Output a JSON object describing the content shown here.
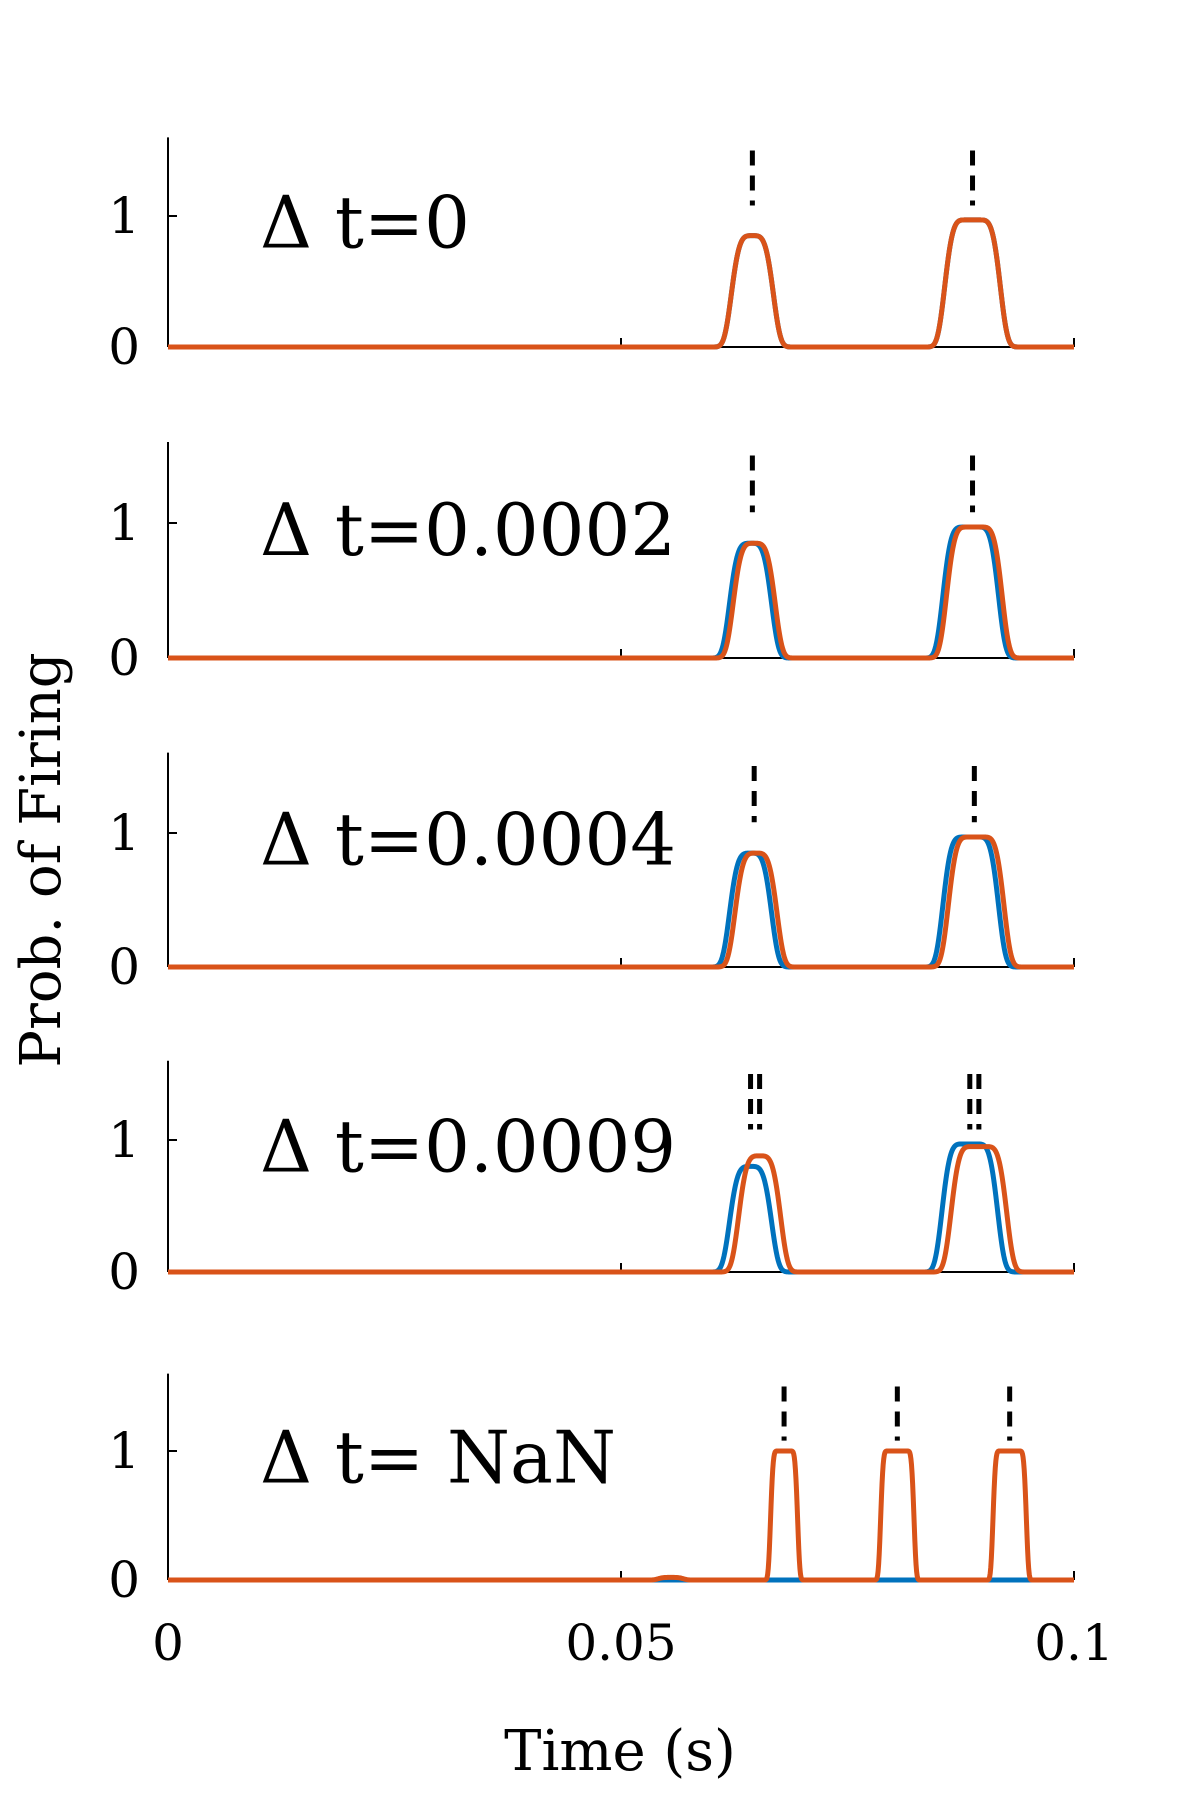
{
  "figure": {
    "ylabel": "Prob. of Firing",
    "xlabel": "Time (s)"
  },
  "colors": {
    "series_blue": "#0072BD",
    "series_orange": "#D95319",
    "spike_marker": "#000000",
    "axis": "#000000"
  },
  "chart_data": [
    {
      "type": "line",
      "label": "Δ t=0",
      "xlim": [
        0,
        0.1
      ],
      "ylim": [
        0,
        1.6
      ],
      "xticks": [
        0,
        0.05,
        0.1
      ],
      "yticks": [
        0,
        1
      ],
      "series": [
        {
          "color": "blue",
          "peaks": [
            {
              "t": 0.0645,
              "h": 0.85,
              "w": 0.0025,
              "flat": 0
            },
            {
              "t": 0.0888,
              "h": 0.97,
              "w": 0.0025,
              "flat": 0.0015
            }
          ]
        },
        {
          "color": "orange",
          "peaks": [
            {
              "t": 0.0645,
              "h": 0.85,
              "w": 0.0025,
              "flat": 0
            },
            {
              "t": 0.0888,
              "h": 0.97,
              "w": 0.0025,
              "flat": 0.0015
            }
          ]
        }
      ],
      "spike_markers": [
        [
          0.0645,
          0.0888
        ]
      ]
    },
    {
      "type": "line",
      "label": "Δ t=0.0002",
      "xlim": [
        0,
        0.1
      ],
      "ylim": [
        0,
        1.6
      ],
      "xticks": [
        0,
        0.05,
        0.1
      ],
      "yticks": [
        0,
        1
      ],
      "series": [
        {
          "color": "blue",
          "peaks": [
            {
              "t": 0.0643,
              "h": 0.85,
              "w": 0.0025,
              "flat": 0
            },
            {
              "t": 0.0886,
              "h": 0.97,
              "w": 0.0025,
              "flat": 0.0015
            }
          ]
        },
        {
          "color": "orange",
          "peaks": [
            {
              "t": 0.0647,
              "h": 0.85,
              "w": 0.0025,
              "flat": 0
            },
            {
              "t": 0.089,
              "h": 0.97,
              "w": 0.0025,
              "flat": 0.0015
            }
          ]
        }
      ],
      "spike_markers": [
        [
          0.0645,
          0.0888
        ]
      ]
    },
    {
      "type": "line",
      "label": "Δ t=0.0004",
      "xlim": [
        0,
        0.1
      ],
      "ylim": [
        0,
        1.6
      ],
      "xticks": [
        0,
        0.05,
        0.1
      ],
      "yticks": [
        0,
        1
      ],
      "series": [
        {
          "color": "blue",
          "peaks": [
            {
              "t": 0.0643,
              "h": 0.85,
              "w": 0.0025,
              "flat": 0
            },
            {
              "t": 0.0886,
              "h": 0.97,
              "w": 0.0025,
              "flat": 0.0015
            }
          ]
        },
        {
          "color": "orange",
          "peaks": [
            {
              "t": 0.0649,
              "h": 0.85,
              "w": 0.0025,
              "flat": 0
            },
            {
              "t": 0.0892,
              "h": 0.97,
              "w": 0.0025,
              "flat": 0.0015
            }
          ]
        }
      ],
      "spike_markers": [
        [
          0.0647,
          0.089
        ]
      ]
    },
    {
      "type": "line",
      "label": "Δ t=0.0009",
      "xlim": [
        0,
        0.1
      ],
      "ylim": [
        0,
        1.6
      ],
      "xticks": [
        0,
        0.05,
        0.1
      ],
      "yticks": [
        0,
        1
      ],
      "series": [
        {
          "color": "blue",
          "peaks": [
            {
              "t": 0.0643,
              "h": 0.8,
              "w": 0.0025,
              "flat": 0
            },
            {
              "t": 0.0885,
              "h": 0.97,
              "w": 0.0025,
              "flat": 0.0015
            }
          ]
        },
        {
          "color": "orange",
          "peaks": [
            {
              "t": 0.0653,
              "h": 0.88,
              "w": 0.0025,
              "flat": 0
            },
            {
              "t": 0.0895,
              "h": 0.95,
              "w": 0.0025,
              "flat": 0.0015
            }
          ]
        }
      ],
      "spike_markers": [
        [
          0.0643,
          0.0885
        ],
        [
          0.0653,
          0.0895
        ]
      ]
    },
    {
      "type": "line",
      "label": "Δ t= NaN",
      "xlim": [
        0,
        0.1
      ],
      "ylim": [
        0,
        1.6
      ],
      "xticks": [
        0,
        0.05,
        0.1
      ],
      "yticks": [
        0,
        1
      ],
      "series": [
        {
          "color": "blue",
          "peaks": []
        },
        {
          "color": "orange",
          "peaks": [
            {
              "t": 0.0555,
              "h": 0.02,
              "w": 0.0015,
              "flat": 0
            },
            {
              "t": 0.068,
              "h": 1.0,
              "w": 0.0008,
              "flat": 0.0015
            },
            {
              "t": 0.0805,
              "h": 1.0,
              "w": 0.0008,
              "flat": 0.0022
            },
            {
              "t": 0.0929,
              "h": 1.0,
              "w": 0.0008,
              "flat": 0.0022
            }
          ]
        }
      ],
      "spike_markers": [
        [
          0.068,
          0.0805,
          0.0929
        ]
      ]
    }
  ]
}
